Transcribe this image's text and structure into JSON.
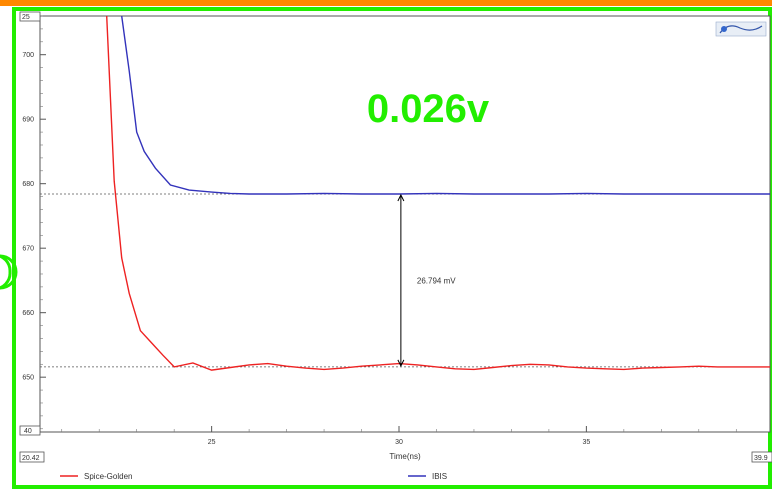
{
  "colors": {
    "frame_green": "#22ee00",
    "top_band": "#ff8800",
    "spice": "#ee2222",
    "ibis": "#3333bb",
    "annotation": "#22ee00"
  },
  "annotation": {
    "big_value": "0.026v",
    "delta_label": "26.794 mV"
  },
  "range": {
    "x_start": "20.42",
    "x_end": "39.9",
    "y_bottom": "40",
    "y_top": "25"
  },
  "logo_icon": "tool-logo-icon",
  "chart_data": {
    "type": "line",
    "xlabel": "Time(ns)",
    "ylabel": "",
    "xlim": [
      20.42,
      39.9
    ],
    "ylim": [
      641.5,
      706
    ],
    "x_ticks": [
      25,
      30,
      35
    ],
    "y_ticks": [
      650,
      660,
      670,
      680,
      690,
      700
    ],
    "grid": false,
    "legend_position": "bottom",
    "reference_levels": [
      678.4,
      651.6
    ],
    "series": [
      {
        "name": "Spice-Golden",
        "color": "#ee2222",
        "x": [
          22.2,
          22.4,
          22.6,
          22.8,
          23.1,
          23.4,
          23.7,
          24.0,
          24.5,
          25.0,
          25.5,
          26.0,
          26.5,
          27.0,
          27.5,
          28.0,
          28.5,
          29.0,
          29.5,
          30.0,
          30.5,
          31.0,
          31.5,
          32.0,
          32.5,
          33.0,
          33.5,
          34.0,
          34.5,
          35.0,
          35.5,
          36.0,
          36.5,
          37.0,
          37.5,
          38.0,
          38.5,
          39.0,
          39.5,
          39.9
        ],
        "y": [
          706,
          680.4,
          668.5,
          663,
          657.2,
          655.3,
          653.4,
          651.6,
          652.2,
          651.1,
          651.5,
          651.9,
          652.1,
          651.7,
          651.4,
          651.2,
          651.4,
          651.7,
          651.9,
          652.1,
          651.9,
          651.6,
          651.3,
          651.2,
          651.5,
          651.8,
          652.0,
          651.9,
          651.6,
          651.4,
          651.3,
          651.2,
          651.4,
          651.5,
          651.6,
          651.7,
          651.6,
          651.6,
          651.6,
          651.6
        ]
      },
      {
        "name": "IBIS",
        "color": "#3333bb",
        "x": [
          22.6,
          22.8,
          23.0,
          23.2,
          23.5,
          23.9,
          24.4,
          25.0,
          25.5,
          26.0,
          27.0,
          28.0,
          29.0,
          30.0,
          31.0,
          32.0,
          33.0,
          34.0,
          35.0,
          36.0,
          37.0,
          38.0,
          39.0,
          39.9
        ],
        "y": [
          706,
          697.5,
          688,
          685,
          682.4,
          679.8,
          679.0,
          678.7,
          678.5,
          678.4,
          678.4,
          678.5,
          678.4,
          678.4,
          678.5,
          678.4,
          678.4,
          678.4,
          678.5,
          678.4,
          678.4,
          678.4,
          678.4,
          678.4
        ]
      }
    ]
  }
}
